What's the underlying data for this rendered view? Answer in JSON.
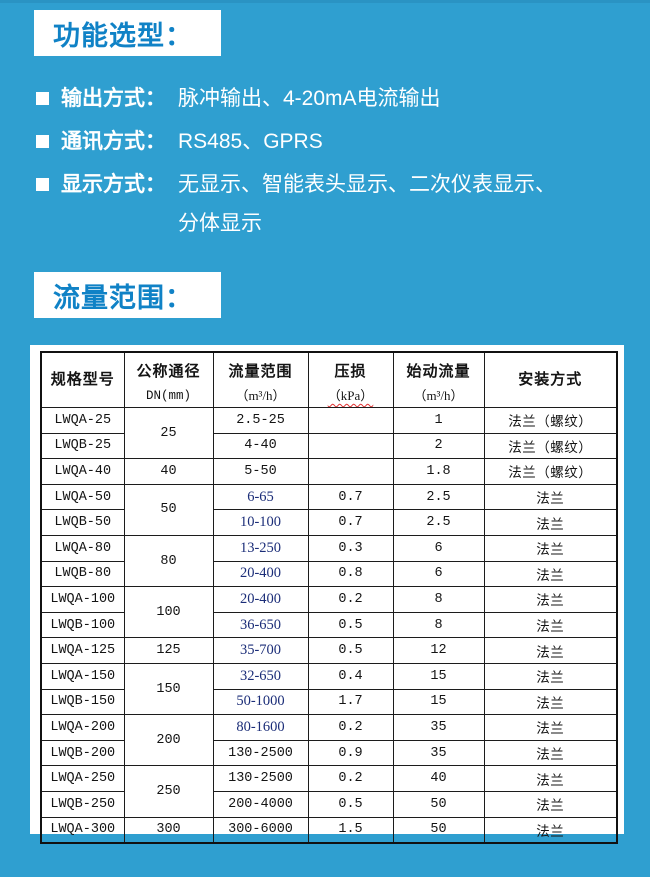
{
  "page": {
    "background_color": "#2f9fd0",
    "accent_blue": "#1082c6",
    "edited_value_blue": "#1b2d78"
  },
  "sections": {
    "function_title": "功能选型：",
    "flow_title": "流量范围："
  },
  "bullets": [
    {
      "label": "输出方式：",
      "content": "脉冲输出、4-20mA电流输出"
    },
    {
      "label": "通讯方式：",
      "content": "RS485、GPRS"
    },
    {
      "label": "显示方式：",
      "content": "无显示、智能表头显示、二次仪表显示、\n分体显示"
    }
  ],
  "table": {
    "headers": [
      {
        "line1": "规格型号",
        "line2": ""
      },
      {
        "line1": "公称通径",
        "line2": "DN(mm)"
      },
      {
        "line1": "流量范围",
        "line2": "（m³/h）"
      },
      {
        "line1": "压损",
        "line2": "（kPa）"
      },
      {
        "line1": "始动流量",
        "line2": "（m³/h）"
      },
      {
        "line1": "安装方式",
        "line2": ""
      }
    ],
    "rows": [
      {
        "model": "LWQA-25",
        "dn": "25",
        "dn_span": 2,
        "flow": "2.5-25",
        "flow_blue": false,
        "loss": "",
        "start": "1",
        "install": "法兰（螺纹）"
      },
      {
        "model": "LWQB-25",
        "flow": "4-40",
        "flow_blue": false,
        "loss": "",
        "start": "2",
        "install": "法兰（螺纹）"
      },
      {
        "model": "LWQA-40",
        "dn": "40",
        "dn_span": 1,
        "flow": "5-50",
        "flow_blue": false,
        "loss": "",
        "start": "1.8",
        "install": "法兰（螺纹）"
      },
      {
        "model": "LWQA-50",
        "dn": "50",
        "dn_span": 2,
        "flow": "6-65",
        "flow_blue": true,
        "loss": "0.7",
        "start": "2.5",
        "install": "法兰"
      },
      {
        "model": "LWQB-50",
        "flow": "10-100",
        "flow_blue": true,
        "loss": "0.7",
        "start": "2.5",
        "install": "法兰"
      },
      {
        "model": "LWQA-80",
        "dn": "80",
        "dn_span": 2,
        "flow": "13-250",
        "flow_blue": true,
        "loss": "0.3",
        "start": "6",
        "install": "法兰"
      },
      {
        "model": "LWQB-80",
        "flow": "20-400",
        "flow_blue": true,
        "loss": "0.8",
        "start": "6",
        "install": "法兰"
      },
      {
        "model": "LWQA-100",
        "dn": "100",
        "dn_span": 2,
        "flow": "20-400",
        "flow_blue": true,
        "loss": "0.2",
        "start": "8",
        "install": "法兰"
      },
      {
        "model": "LWQB-100",
        "flow": "36-650",
        "flow_blue": true,
        "loss": "0.5",
        "start": "8",
        "install": "法兰"
      },
      {
        "model": "LWQA-125",
        "dn": "125",
        "dn_span": 1,
        "flow": "35-700",
        "flow_blue": true,
        "loss": "0.5",
        "start": "12",
        "install": "法兰"
      },
      {
        "model": "LWQA-150",
        "dn": "150",
        "dn_span": 2,
        "flow": "32-650",
        "flow_blue": true,
        "loss": "0.4",
        "start": "15",
        "install": "法兰"
      },
      {
        "model": "LWQB-150",
        "flow": "50-1000",
        "flow_blue": true,
        "loss": "1.7",
        "start": "15",
        "install": "法兰"
      },
      {
        "model": "LWQA-200",
        "dn": "200",
        "dn_span": 2,
        "flow": "80-1600",
        "flow_blue": true,
        "loss": "0.2",
        "start": "35",
        "install": "法兰"
      },
      {
        "model": "LWQB-200",
        "flow": "130-2500",
        "flow_blue": false,
        "loss": "0.9",
        "start": "35",
        "install": "法兰"
      },
      {
        "model": "LWQA-250",
        "dn": "250",
        "dn_span": 2,
        "flow": "130-2500",
        "flow_blue": false,
        "loss": "0.2",
        "start": "40",
        "install": "法兰"
      },
      {
        "model": "LWQB-250",
        "flow": "200-4000",
        "flow_blue": false,
        "loss": "0.5",
        "start": "50",
        "install": "法兰"
      },
      {
        "model": "LWQA-300",
        "dn": "300",
        "dn_span": 1,
        "flow": "300-6000",
        "flow_blue": false,
        "loss": "1.5",
        "start": "50",
        "install": "法兰"
      }
    ]
  }
}
